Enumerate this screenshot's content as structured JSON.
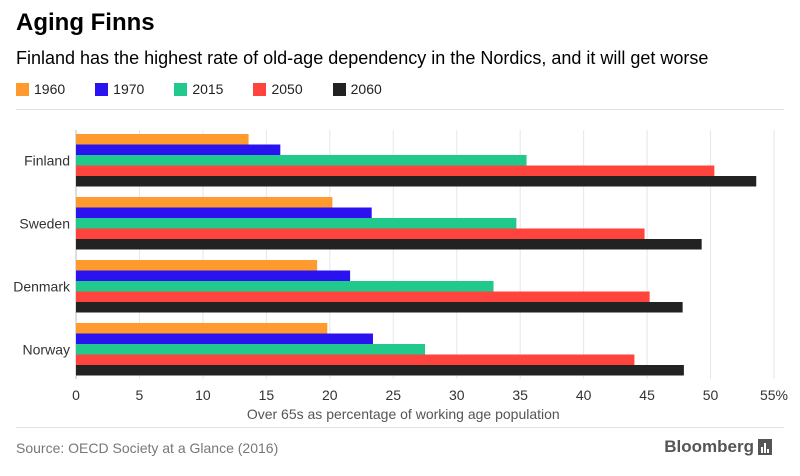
{
  "header": {
    "title": "Aging Finns",
    "subtitle": "Finland has the highest rate of old-age dependency in the Nordics, and it will get worse"
  },
  "footer": {
    "source": "Source: OECD Society at a Glance (2016)",
    "brand": "Bloomberg"
  },
  "chart_data": {
    "type": "bar",
    "orientation": "horizontal",
    "title": "Aging Finns",
    "subtitle": "Finland has the highest rate of old-age dependency in the Nordics, and it will get worse",
    "categories": [
      "Finland",
      "Sweden",
      "Denmark",
      "Norway"
    ],
    "series": [
      {
        "name": "1960",
        "color": "#ff9a2e",
        "values": [
          13.6,
          20.2,
          19.0,
          19.8
        ]
      },
      {
        "name": "1970",
        "color": "#2a13ee",
        "values": [
          16.1,
          23.3,
          21.6,
          23.4
        ]
      },
      {
        "name": "2015",
        "color": "#22c98d",
        "values": [
          35.5,
          34.7,
          32.9,
          27.5
        ]
      },
      {
        "name": "2050",
        "color": "#ff433d",
        "values": [
          50.3,
          44.8,
          45.2,
          44.0
        ]
      },
      {
        "name": "2060",
        "color": "#222222",
        "values": [
          53.6,
          49.3,
          47.8,
          47.9
        ]
      }
    ],
    "xlabel": "Over 65s as percentage of working age population",
    "ylabel": "",
    "xlim": [
      0,
      55
    ],
    "xticks": [
      0,
      5,
      10,
      15,
      20,
      25,
      30,
      35,
      40,
      45,
      50,
      55
    ],
    "xtick_labels": [
      "0",
      "5",
      "10",
      "15",
      "20",
      "25",
      "30",
      "35",
      "40",
      "45",
      "50",
      "55%"
    ],
    "legend_position": "top-left"
  }
}
